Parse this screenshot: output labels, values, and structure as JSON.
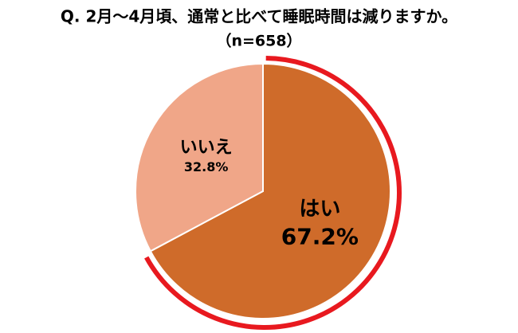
{
  "chart_data": {
    "type": "pie",
    "title": "Q. 2月～4月頃、通常と比べて睡眠時間は減りますか。",
    "subtitle": "（n=658）",
    "categories": [
      "はい",
      "いいえ"
    ],
    "values": [
      67.2,
      32.8
    ],
    "value_labels": [
      "67.2%",
      "32.8%"
    ],
    "colors": [
      "#cf6b2a",
      "#f0a688"
    ],
    "highlight_color": "#e8191f"
  }
}
